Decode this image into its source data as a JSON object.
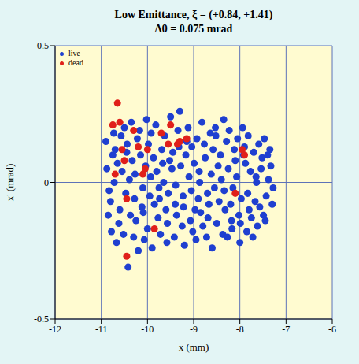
{
  "chart_data": {
    "type": "scatter",
    "title": "Low Emittance, ξ = (+0.84, +1.41)",
    "subtitle": "Δθ = 0.075 mrad",
    "x_label": "x (mm)",
    "y_label": "x' (mrad)",
    "xlim": [
      -12,
      -6
    ],
    "xticks": [
      -12,
      -11,
      -10,
      -9,
      -8,
      -7,
      -6
    ],
    "ylim": [
      -0.5,
      0.5
    ],
    "yticks": [
      -0.5,
      0,
      0.5
    ],
    "grid": true,
    "legend": "upper left",
    "marker": "circle",
    "series": [
      {
        "name": "live",
        "color": "#1f3fd0",
        "x": [
          -10.88,
          -10.85,
          -10.9,
          -10.83,
          -10.78,
          -10.75,
          -10.8,
          -10.73,
          -10.7,
          -10.67,
          -10.72,
          -10.65,
          -10.6,
          -10.57,
          -10.62,
          -10.55,
          -10.5,
          -10.47,
          -10.52,
          -10.45,
          -10.42,
          -10.39,
          -10.44,
          -10.37,
          -10.33,
          -10.3,
          -10.35,
          -10.28,
          -10.25,
          -10.22,
          -10.27,
          -10.2,
          -10.15,
          -10.12,
          -10.17,
          -10.1,
          -10.07,
          -10.04,
          -10.09,
          -10.02,
          -9.98,
          -9.95,
          -10.0,
          -9.93,
          -9.9,
          -9.87,
          -9.92,
          -9.85,
          -9.8,
          -9.77,
          -9.82,
          -9.75,
          -9.72,
          -9.69,
          -9.74,
          -9.67,
          -9.63,
          -9.6,
          -9.65,
          -9.58,
          -9.55,
          -9.52,
          -9.57,
          -9.5,
          -9.45,
          -9.42,
          -9.47,
          -9.4,
          -9.37,
          -9.34,
          -9.39,
          -9.32,
          -9.28,
          -9.25,
          -9.3,
          -9.23,
          -9.2,
          -9.17,
          -9.22,
          -9.15,
          -9.1,
          -9.07,
          -9.12,
          -9.05,
          -9.02,
          -8.99,
          -9.04,
          -8.97,
          -8.93,
          -8.9,
          -8.95,
          -8.88,
          -8.85,
          -8.82,
          -8.87,
          -8.8,
          -8.75,
          -8.72,
          -8.77,
          -8.7,
          -8.67,
          -8.64,
          -8.69,
          -8.62,
          -8.58,
          -8.55,
          -8.6,
          -8.53,
          -8.5,
          -8.47,
          -8.52,
          -8.45,
          -8.4,
          -8.37,
          -8.42,
          -8.35,
          -8.32,
          -8.29,
          -8.34,
          -8.27,
          -8.23,
          -8.2,
          -8.25,
          -8.18,
          -8.15,
          -8.12,
          -8.17,
          -8.1,
          -8.05,
          -8.02,
          -8.07,
          -8.0,
          -7.97,
          -7.94,
          -7.99,
          -7.92,
          -7.88,
          -7.85,
          -7.9,
          -7.83,
          -7.8,
          -7.77,
          -7.82,
          -7.75,
          -7.7,
          -7.67,
          -7.72,
          -7.65,
          -7.62,
          -7.59,
          -7.64,
          -7.57,
          -7.52,
          -7.49,
          -7.54,
          -7.47,
          -7.43,
          -7.4,
          -7.45,
          -7.38,
          -7.33,
          -7.3,
          -7.35,
          -7.28
        ],
        "values": [
          0.05,
          -0.12,
          0.15,
          -0.03,
          -0.18,
          0.1,
          -0.07,
          0.18,
          0.12,
          -0.22,
          0.0,
          0.07,
          -0.1,
          0.17,
          -0.15,
          0.04,
          0.2,
          -0.04,
          -0.19,
          0.11,
          -0.31,
          0.01,
          0.14,
          -0.12,
          0.08,
          -0.2,
          0.22,
          -0.06,
          -0.14,
          0.16,
          0.03,
          -0.25,
          0.1,
          -0.09,
          0.19,
          -0.02,
          -0.21,
          0.06,
          -0.11,
          0.23,
          0.14,
          -0.05,
          -0.17,
          0.02,
          -0.24,
          0.09,
          0.18,
          -0.08,
          0.04,
          -0.13,
          0.21,
          -0.02,
          -0.19,
          0.12,
          -0.06,
          0.07,
          0.17,
          -0.1,
          0.0,
          -0.22,
          -0.04,
          0.08,
          -0.15,
          0.24,
          0.11,
          -0.2,
          0.05,
          -0.08,
          -0.12,
          0.19,
          -0.01,
          0.13,
          0.06,
          -0.16,
          0.26,
          -0.05,
          -0.23,
          0.1,
          -0.09,
          0.15,
          0.02,
          -0.14,
          0.2,
          -0.03,
          -0.18,
          0.07,
          0.13,
          -0.1,
          0.16,
          -0.06,
          -0.21,
          0.04,
          -0.11,
          0.22,
          0.0,
          -0.16,
          0.09,
          -0.2,
          0.14,
          -0.04,
          -0.08,
          0.18,
          -0.13,
          0.03,
          0.12,
          -0.02,
          -0.24,
          0.2,
          -0.15,
          0.06,
          0.17,
          -0.07,
          0.01,
          -0.19,
          0.1,
          0.23,
          -0.1,
          0.15,
          -0.03,
          -0.2,
          0.19,
          -0.08,
          0.05,
          -0.14,
          -0.02,
          0.12,
          -0.17,
          0.08,
          0.16,
          -0.12,
          0.02,
          -0.22,
          -0.06,
          0.2,
          -0.15,
          0.1,
          0.07,
          -0.18,
          0.13,
          -0.04,
          -0.1,
          0.04,
          0.17,
          -0.13,
          0.11,
          -0.07,
          -0.2,
          0.02,
          -0.16,
          0.14,
          0.0,
          -0.09,
          0.09,
          -0.12,
          0.05,
          0.16,
          -0.05,
          0.1,
          -0.14,
          0.01,
          0.06,
          -0.08,
          0.12,
          -0.02
        ]
      },
      {
        "name": "dead",
        "color": "#e0201a",
        "x": [
          -10.75,
          -10.65,
          -10.6,
          -10.55,
          -10.7,
          -10.5,
          -10.45,
          -10.45,
          -10.3,
          -10.1,
          -10.05,
          -10.0,
          -9.85,
          -9.7,
          -9.55,
          -9.5,
          -9.35,
          -9.3,
          -8.1,
          -7.95,
          -7.9,
          -10.2,
          -9.15
        ],
        "values": [
          0.21,
          0.29,
          0.22,
          0.12,
          0.03,
          0.08,
          -0.06,
          -0.27,
          0.19,
          0.03,
          0.05,
          0.12,
          -0.17,
          0.18,
          0.14,
          0.21,
          0.14,
          0.15,
          -0.04,
          0.12,
          0.1,
          0.13,
          0.16
        ]
      }
    ]
  }
}
